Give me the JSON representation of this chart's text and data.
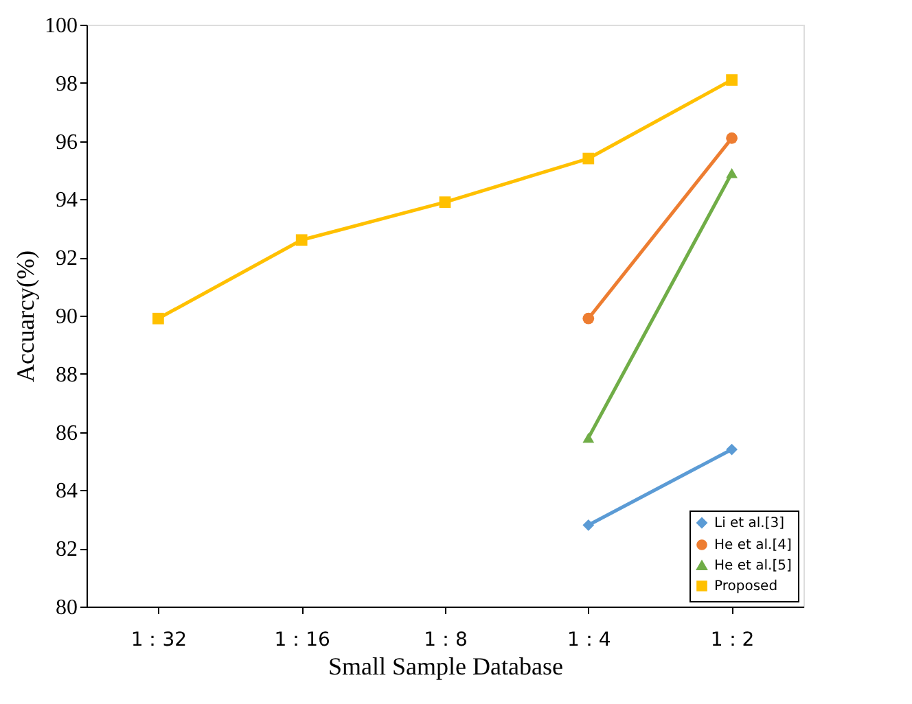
{
  "chart_data": {
    "type": "line",
    "xlabel": "Small Sample Database",
    "ylabel": "Accuarcy(%)",
    "categories": [
      "1：32",
      "1：16",
      "1：8",
      "1：4",
      "1：2"
    ],
    "series": [
      {
        "name": "Li et al.[3]",
        "color": "#5b9bd5",
        "marker": "diamond",
        "values": [
          null,
          null,
          null,
          82.8,
          85.4
        ]
      },
      {
        "name": "He et al.[4]",
        "color": "#ed7d31",
        "marker": "circle",
        "values": [
          null,
          null,
          null,
          89.9,
          96.1
        ]
      },
      {
        "name": "He et al.[5]",
        "color": "#70ad47",
        "marker": "triangle",
        "values": [
          null,
          null,
          null,
          85.8,
          94.9
        ]
      },
      {
        "name": "Proposed",
        "color": "#ffc000",
        "marker": "square",
        "values": [
          89.9,
          92.6,
          93.9,
          95.4,
          98.1
        ]
      }
    ],
    "ylim": [
      80,
      100
    ],
    "yticks": [
      80,
      82,
      84,
      86,
      88,
      90,
      92,
      94,
      96,
      98,
      100
    ],
    "grid": false,
    "legend": "bottom right",
    "line_style": "solid"
  }
}
